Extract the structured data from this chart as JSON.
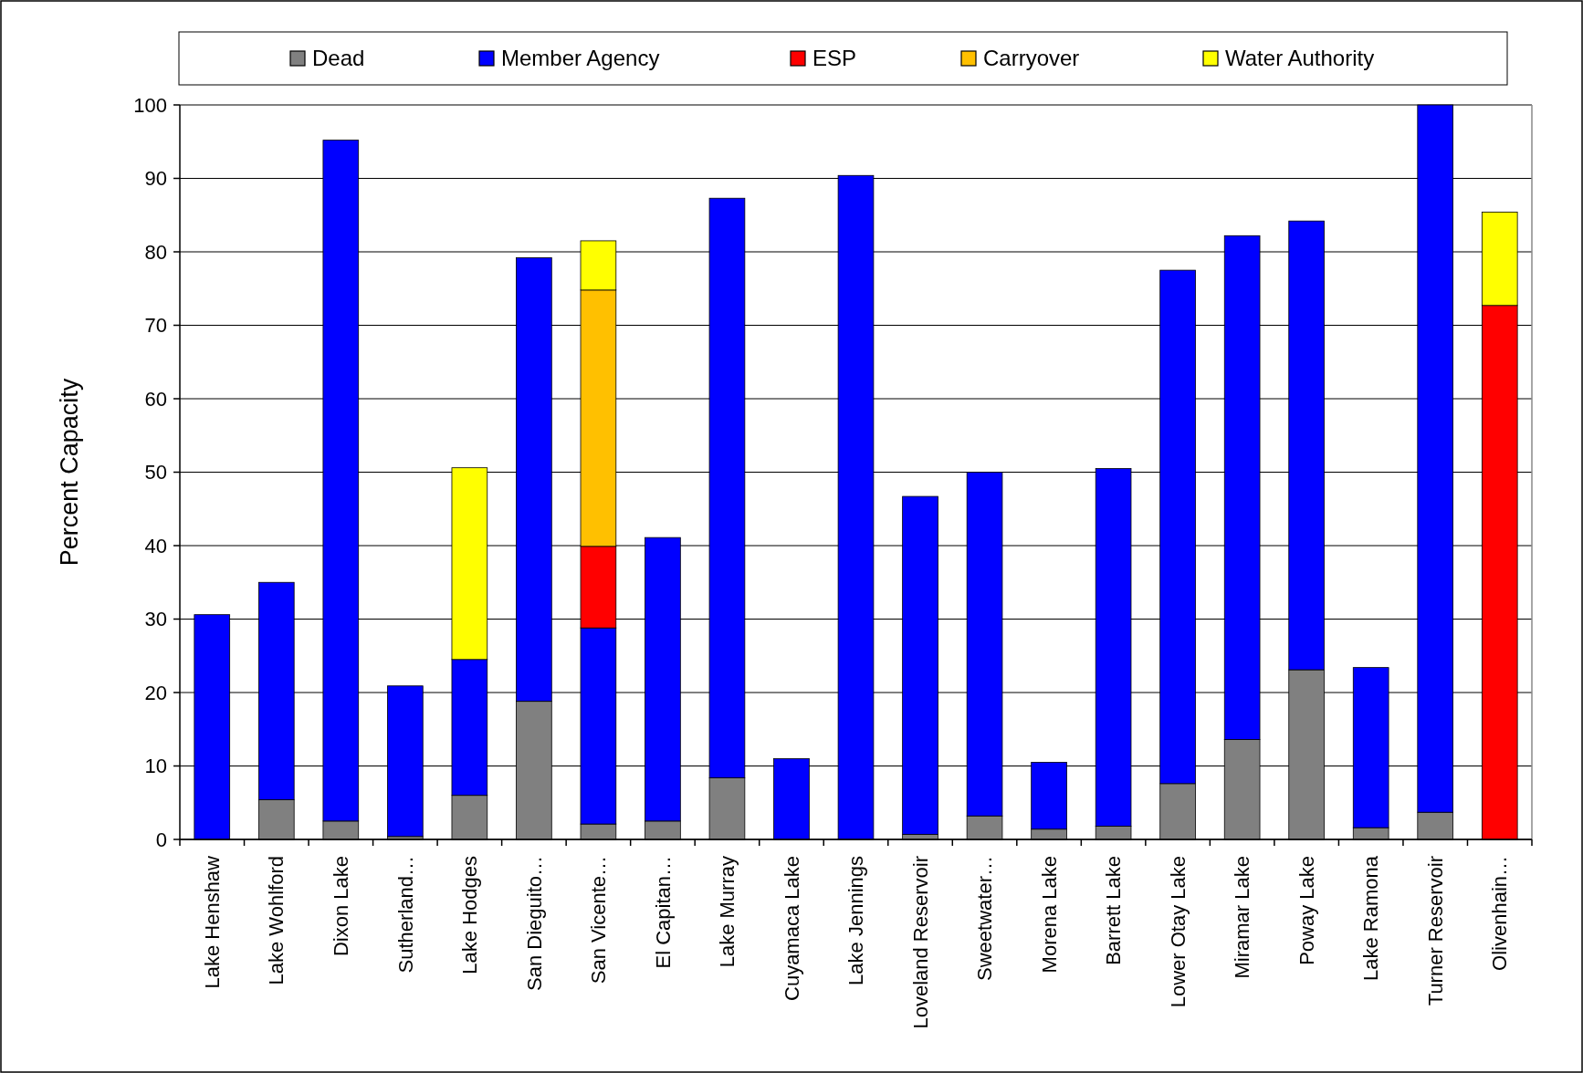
{
  "chart_data": {
    "type": "bar",
    "stacked": true,
    "ylabel": "Percent Capacity",
    "ylim": [
      0,
      100
    ],
    "yticks": [
      0,
      10,
      20,
      30,
      40,
      50,
      60,
      70,
      80,
      90,
      100
    ],
    "grid": "y",
    "legend": "top",
    "categories": [
      "Lake Henshaw",
      "Lake Wohlford",
      "Dixon Lake",
      "Sutherland…",
      "Lake Hodges",
      "San Dieguito…",
      "San Vicente…",
      "El Capitan…",
      "Lake Murray",
      "Cuyamaca Lake",
      "Lake Jennings",
      "Loveland Reservoir",
      "Sweetwater…",
      "Morena Lake",
      "Barrett Lake",
      "Lower Otay Lake",
      "Miramar Lake",
      "Poway Lake",
      "Lake Ramona",
      "Turner Reservoir",
      "Olivenhain…"
    ],
    "series": [
      {
        "name": "Dead",
        "color": "#808080",
        "values": [
          0,
          5.4,
          2.5,
          0.4,
          6.0,
          18.8,
          2.1,
          2.5,
          8.4,
          0,
          0,
          0.7,
          3.2,
          1.4,
          1.8,
          7.6,
          13.6,
          23.1,
          1.6,
          3.7,
          null
        ]
      },
      {
        "name": "Member Agency",
        "color": "#0000ff",
        "values": [
          30.6,
          29.6,
          92.7,
          20.5,
          18.5,
          60.4,
          26.7,
          38.6,
          78.9,
          11.0,
          90.4,
          46.0,
          46.8,
          9.1,
          48.7,
          69.9,
          68.6,
          61.1,
          21.8,
          96.3,
          0
        ]
      },
      {
        "name": "ESP",
        "color": "#ff0000",
        "values": [
          0,
          0,
          0,
          0,
          0,
          0,
          11.1,
          0,
          0,
          0,
          0,
          0,
          0,
          0,
          0,
          0,
          0,
          0,
          0,
          0,
          72.7
        ]
      },
      {
        "name": "Carryover",
        "color": "#ffc000",
        "values": [
          0,
          0,
          0,
          0,
          0,
          0,
          34.9,
          0,
          0,
          0,
          0,
          0,
          0,
          0,
          0,
          0,
          0,
          0,
          0,
          0,
          0
        ]
      },
      {
        "name": "Water Authority",
        "color": "#ffff00",
        "values": [
          0,
          0,
          0,
          0,
          26.1,
          0,
          6.7,
          0,
          0,
          0,
          0,
          0,
          0,
          0,
          0,
          0,
          0,
          0,
          0,
          0,
          12.7
        ]
      }
    ]
  }
}
